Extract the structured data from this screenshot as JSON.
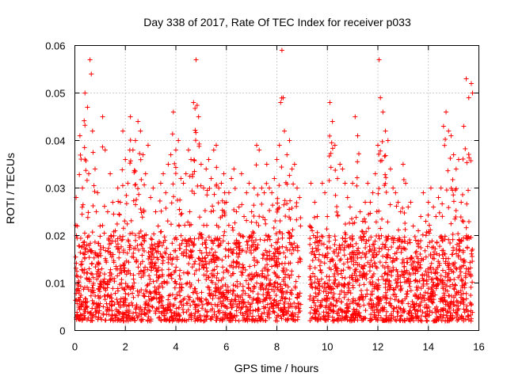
{
  "chart_data": {
    "type": "scatter",
    "title": "Day 338 of 2017, Rate Of TEC Index for receiver p033",
    "xlabel": "GPS time / hours",
    "ylabel": "ROTI / TECUs",
    "xlim": [
      0,
      16
    ],
    "ylim": [
      0,
      0.06
    ],
    "xticks": [
      0,
      2,
      4,
      6,
      8,
      10,
      12,
      14,
      16
    ],
    "xtick_labels": [
      "0",
      "2",
      "4",
      "6",
      "8",
      "10",
      "12",
      "14",
      "16"
    ],
    "yticks": [
      0,
      0.01,
      0.02,
      0.03,
      0.04,
      0.05,
      0.06
    ],
    "ytick_labels": [
      "0",
      "0.01",
      "0.02",
      "0.03",
      "0.04",
      "0.05",
      "0.06"
    ],
    "grid": true,
    "marker": "plus",
    "color": "#ff0000",
    "data_gap_hours": [
      8.95,
      9.3
    ],
    "series": [
      {
        "name": "ROTI",
        "x": [
          0.05,
          0.1,
          0.2,
          0.3,
          0.4,
          0.5,
          0.55,
          0.6,
          0.65,
          0.7,
          0.8,
          0.9,
          1.0,
          1.1,
          1.2,
          1.3,
          1.4,
          1.5,
          1.6,
          1.7,
          1.8,
          1.9,
          2.0,
          2.1,
          2.2,
          2.3,
          2.4,
          2.5,
          2.6,
          2.7,
          2.8,
          2.9,
          3.0,
          3.1,
          3.2,
          3.3,
          3.4,
          3.5,
          3.6,
          3.7,
          3.8,
          3.9,
          4.0,
          4.1,
          4.2,
          4.3,
          4.4,
          4.5,
          4.6,
          4.7,
          4.8,
          4.9,
          5.0,
          5.1,
          5.2,
          5.3,
          5.4,
          5.5,
          5.6,
          5.7,
          5.8,
          5.9,
          6.0,
          6.1,
          6.2,
          6.3,
          6.4,
          6.5,
          6.6,
          6.7,
          6.8,
          6.9,
          7.0,
          7.1,
          7.2,
          7.3,
          7.4,
          7.5,
          7.6,
          7.7,
          7.8,
          7.9,
          8.0,
          8.1,
          8.15,
          8.2,
          8.25,
          8.3,
          8.4,
          8.5,
          8.6,
          8.7,
          8.8,
          8.9,
          9.35,
          9.4,
          9.5,
          9.6,
          9.7,
          9.8,
          9.9,
          10.0,
          10.1,
          10.2,
          10.3,
          10.4,
          10.5,
          10.6,
          10.7,
          10.8,
          10.9,
          11.0,
          11.1,
          11.2,
          11.3,
          11.4,
          11.5,
          11.6,
          11.7,
          11.8,
          11.9,
          12.0,
          12.05,
          12.1,
          12.2,
          12.3,
          12.4,
          12.5,
          12.6,
          12.7,
          12.8,
          12.9,
          13.0,
          13.1,
          13.2,
          13.3,
          13.4,
          13.5,
          13.6,
          13.7,
          13.8,
          13.9,
          14.0,
          14.1,
          14.2,
          14.3,
          14.4,
          14.5,
          14.6,
          14.7,
          14.8,
          14.9,
          15.0,
          15.1,
          15.2,
          15.3,
          15.4,
          15.5,
          15.6,
          15.7,
          15.75
        ],
        "y": [
          0.028,
          0.022,
          0.041,
          0.03,
          0.05,
          0.047,
          0.033,
          0.057,
          0.054,
          0.042,
          0.034,
          0.029,
          0.022,
          0.045,
          0.038,
          0.025,
          0.033,
          0.027,
          0.021,
          0.03,
          0.027,
          0.042,
          0.036,
          0.031,
          0.045,
          0.038,
          0.04,
          0.044,
          0.042,
          0.037,
          0.033,
          0.039,
          0.028,
          0.03,
          0.025,
          0.022,
          0.031,
          0.033,
          0.029,
          0.035,
          0.037,
          0.046,
          0.038,
          0.04,
          0.032,
          0.031,
          0.033,
          0.038,
          0.036,
          0.048,
          0.057,
          0.045,
          0.035,
          0.03,
          0.034,
          0.036,
          0.032,
          0.038,
          0.039,
          0.03,
          0.031,
          0.033,
          0.027,
          0.029,
          0.032,
          0.034,
          0.025,
          0.026,
          0.033,
          0.024,
          0.029,
          0.031,
          0.025,
          0.03,
          0.039,
          0.038,
          0.03,
          0.029,
          0.035,
          0.03,
          0.029,
          0.032,
          0.036,
          0.039,
          0.048,
          0.059,
          0.049,
          0.042,
          0.037,
          0.04,
          0.034,
          0.035,
          0.03,
          0.028,
          0.031,
          0.021,
          0.027,
          0.024,
          0.019,
          0.031,
          0.029,
          0.024,
          0.048,
          0.044,
          0.039,
          0.032,
          0.035,
          0.034,
          0.031,
          0.028,
          0.026,
          0.031,
          0.045,
          0.041,
          0.025,
          0.023,
          0.027,
          0.031,
          0.027,
          0.029,
          0.033,
          0.039,
          0.057,
          0.049,
          0.046,
          0.042,
          0.04,
          0.034,
          0.03,
          0.029,
          0.027,
          0.025,
          0.035,
          0.031,
          0.026,
          0.027,
          0.022,
          0.019,
          0.021,
          0.024,
          0.029,
          0.023,
          0.027,
          0.03,
          0.026,
          0.024,
          0.028,
          0.03,
          0.043,
          0.046,
          0.042,
          0.041,
          0.037,
          0.034,
          0.036,
          0.027,
          0.043,
          0.053,
          0.049,
          0.052,
          0.05
        ]
      }
    ]
  }
}
